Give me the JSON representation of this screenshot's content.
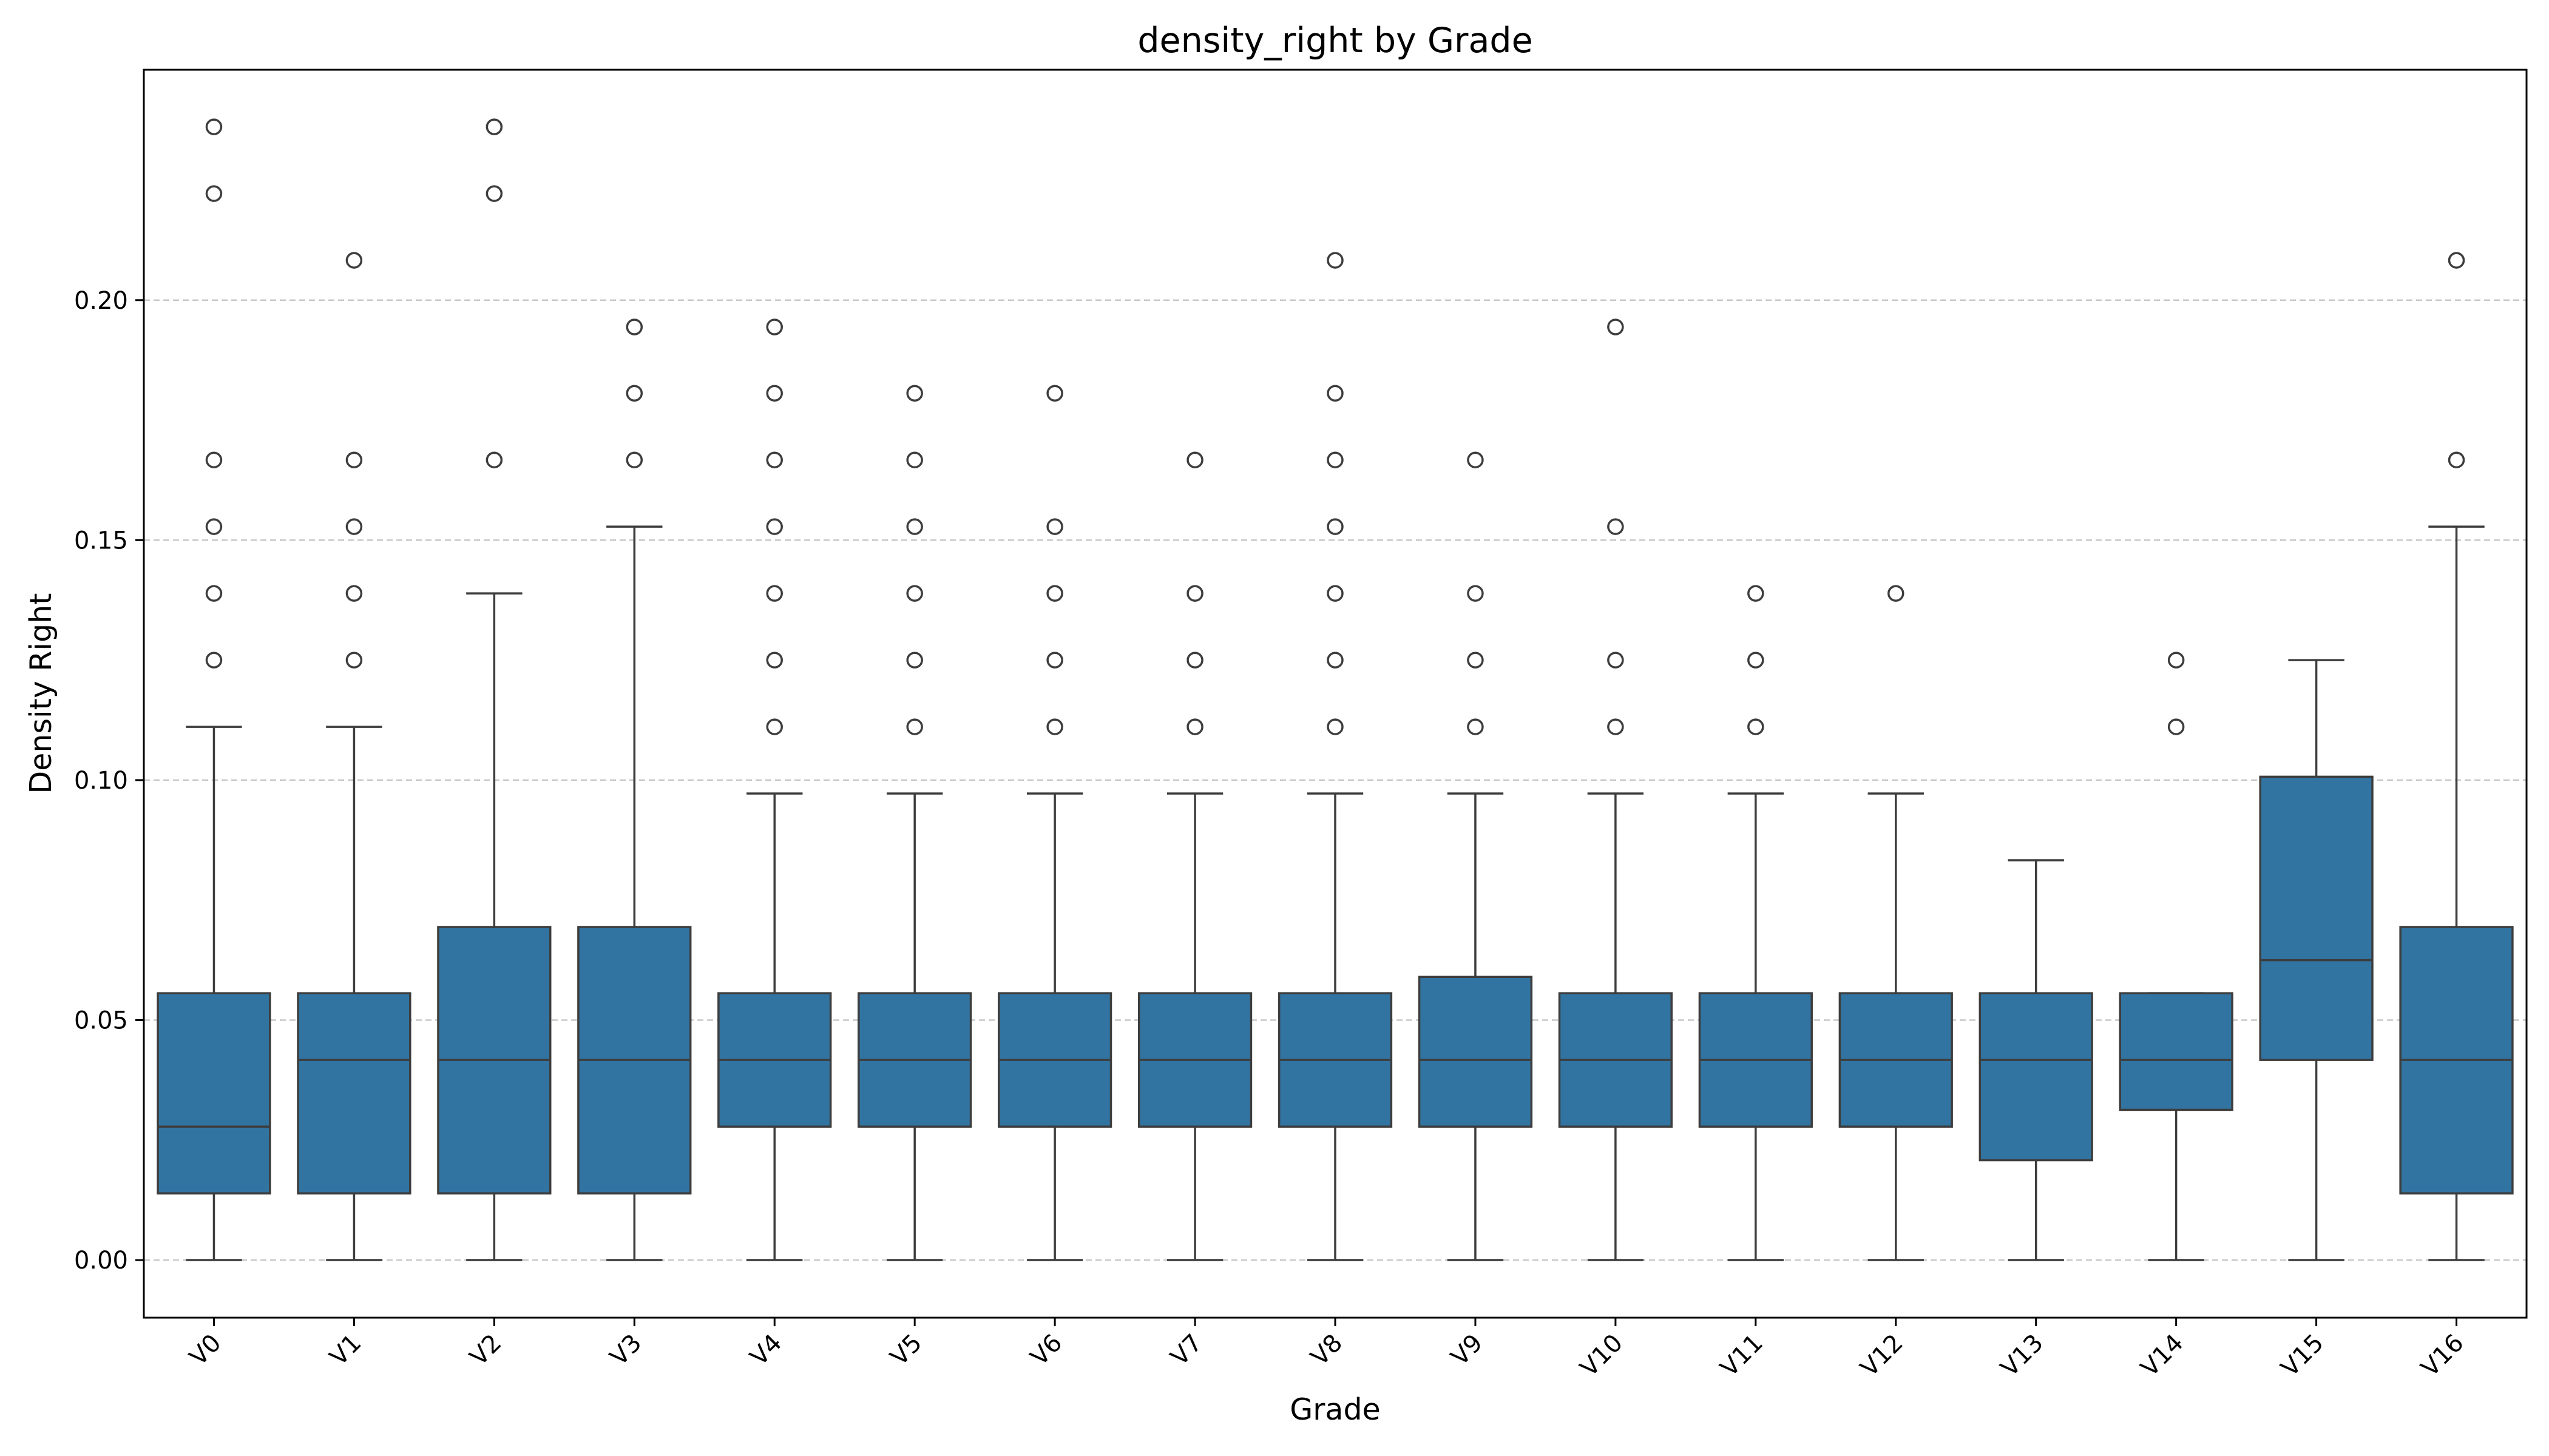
{
  "chart_data": {
    "type": "box",
    "title": "density_right by Grade",
    "xlabel": "Grade",
    "ylabel": "Density Right",
    "ylim": [
      -0.012,
      0.248
    ],
    "yticks": [
      0.0,
      0.05,
      0.1,
      0.15,
      0.2
    ],
    "ytick_labels": [
      "0.00",
      "0.05",
      "0.10",
      "0.15",
      "0.20"
    ],
    "grid": "y-dashed",
    "box_color": "#3274a1",
    "line_color": "#3d3d3d",
    "categories": [
      "V0",
      "V1",
      "V2",
      "V3",
      "V4",
      "V5",
      "V6",
      "V7",
      "V8",
      "V9",
      "V10",
      "V11",
      "V12",
      "V13",
      "V14",
      "V15",
      "V16"
    ],
    "boxes": [
      {
        "whislo": 0.0,
        "q1": 0.0139,
        "med": 0.0278,
        "q3": 0.0556,
        "whishi": 0.1111,
        "fliers": [
          0.125,
          0.1389,
          0.1528,
          0.1667,
          0.2222,
          0.2361
        ]
      },
      {
        "whislo": 0.0,
        "q1": 0.0139,
        "med": 0.0417,
        "q3": 0.0556,
        "whishi": 0.1111,
        "fliers": [
          0.125,
          0.1389,
          0.1528,
          0.1667,
          0.2083
        ]
      },
      {
        "whislo": 0.0,
        "q1": 0.0139,
        "med": 0.0417,
        "q3": 0.0694,
        "whishi": 0.1389,
        "fliers": [
          0.1667,
          0.2222,
          0.2361
        ]
      },
      {
        "whislo": 0.0,
        "q1": 0.0139,
        "med": 0.0417,
        "q3": 0.0694,
        "whishi": 0.1528,
        "fliers": [
          0.1667,
          0.1806,
          0.1944
        ]
      },
      {
        "whislo": 0.0,
        "q1": 0.0278,
        "med": 0.0417,
        "q3": 0.0556,
        "whishi": 0.0972,
        "fliers": [
          0.1111,
          0.125,
          0.1389,
          0.1528,
          0.1667,
          0.1806,
          0.1944
        ]
      },
      {
        "whislo": 0.0,
        "q1": 0.0278,
        "med": 0.0417,
        "q3": 0.0556,
        "whishi": 0.0972,
        "fliers": [
          0.1111,
          0.125,
          0.1389,
          0.1528,
          0.1667,
          0.1806
        ]
      },
      {
        "whislo": 0.0,
        "q1": 0.0278,
        "med": 0.0417,
        "q3": 0.0556,
        "whishi": 0.0972,
        "fliers": [
          0.1111,
          0.125,
          0.1389,
          0.1528,
          0.1806
        ]
      },
      {
        "whislo": 0.0,
        "q1": 0.0278,
        "med": 0.0417,
        "q3": 0.0556,
        "whishi": 0.0972,
        "fliers": [
          0.1111,
          0.125,
          0.1389,
          0.1667
        ]
      },
      {
        "whislo": 0.0,
        "q1": 0.0278,
        "med": 0.0417,
        "q3": 0.0556,
        "whishi": 0.0972,
        "fliers": [
          0.1111,
          0.125,
          0.1389,
          0.1528,
          0.1667,
          0.1806,
          0.2083
        ]
      },
      {
        "whislo": 0.0,
        "q1": 0.0278,
        "med": 0.0417,
        "q3": 0.059,
        "whishi": 0.0972,
        "fliers": [
          0.1111,
          0.125,
          0.1389,
          0.1667
        ]
      },
      {
        "whislo": 0.0,
        "q1": 0.0278,
        "med": 0.0417,
        "q3": 0.0556,
        "whishi": 0.0972,
        "fliers": [
          0.1111,
          0.125,
          0.1528,
          0.1944
        ]
      },
      {
        "whislo": 0.0,
        "q1": 0.0278,
        "med": 0.0417,
        "q3": 0.0556,
        "whishi": 0.0972,
        "fliers": [
          0.1111,
          0.125,
          0.1389
        ]
      },
      {
        "whislo": 0.0,
        "q1": 0.0278,
        "med": 0.0417,
        "q3": 0.0556,
        "whishi": 0.0972,
        "fliers": [
          0.1389
        ]
      },
      {
        "whislo": 0.0,
        "q1": 0.0208,
        "med": 0.0417,
        "q3": 0.0556,
        "whishi": 0.0833,
        "fliers": []
      },
      {
        "whislo": 0.0,
        "q1": 0.0313,
        "med": 0.0417,
        "q3": 0.0556,
        "whishi": 0.0556,
        "fliers": [
          0.1111,
          0.125
        ]
      },
      {
        "whislo": 0.0,
        "q1": 0.0417,
        "med": 0.0625,
        "q3": 0.1007,
        "whishi": 0.125,
        "fliers": []
      },
      {
        "whislo": 0.0,
        "q1": 0.0139,
        "med": 0.0417,
        "q3": 0.0694,
        "whishi": 0.1528,
        "fliers": [
          0.1667,
          0.2083
        ]
      }
    ]
  }
}
